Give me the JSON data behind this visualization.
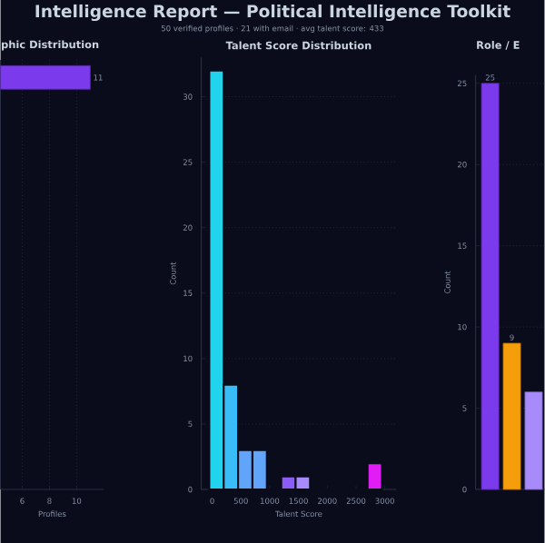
{
  "chart_data": [
    {
      "type": "other",
      "title": "Intelligence Report — Political Intelligence Toolkit",
      "subtitle": "50 verified profiles  ·  21 with email  ·  avg talent score: 433"
    },
    {
      "type": "bar",
      "orientation": "horizontal",
      "title": "phic Distribution",
      "xlabel": "Profiles",
      "categories": [
        null
      ],
      "values": [
        11
      ],
      "color": "#7c3aed",
      "xlim": [
        4.4,
        12
      ],
      "xticks": [
        6,
        8,
        10
      ],
      "grid": "x",
      "data_labels": true
    },
    {
      "type": "histogram",
      "title": "Talent Score Distribution",
      "xlabel": "Talent Score",
      "ylabel": "Count",
      "bins": [
        -50,
        200,
        450,
        700,
        950,
        1200,
        1450,
        1700,
        1950,
        2200,
        2450,
        2700,
        2950
      ],
      "values": [
        32,
        8,
        3,
        3,
        0,
        1,
        1,
        0,
        0,
        0,
        0,
        2
      ],
      "colors": [
        "#22d3ee",
        "#38bdf8",
        "#60a5fa",
        "#60a5fa",
        "#818cf8",
        "#8b5cf6",
        "#a78bfa",
        "#a855f7",
        "#c084fc",
        "#c026d3",
        "#d946ef",
        "#e11df5"
      ],
      "xlim": [
        -190,
        3200
      ],
      "ylim": [
        0,
        33
      ],
      "xticks": [
        0,
        500,
        1000,
        1500,
        2000,
        2500,
        3000
      ],
      "yticks": [
        0,
        5,
        10,
        15,
        20,
        25,
        30
      ],
      "grid": "y"
    },
    {
      "type": "bar",
      "title": "Role / E",
      "ylabel": "Count",
      "categories": [
        null,
        null,
        null
      ],
      "values": [
        25,
        9,
        6
      ],
      "colors": [
        "#7c3aed",
        "#f59e0b",
        "#a78bfa"
      ],
      "ylim": [
        0,
        25.5
      ],
      "yticks": [
        0,
        5,
        10,
        15,
        20,
        25
      ],
      "value_labels": [
        "25",
        "9",
        null
      ],
      "grid": "y"
    }
  ]
}
